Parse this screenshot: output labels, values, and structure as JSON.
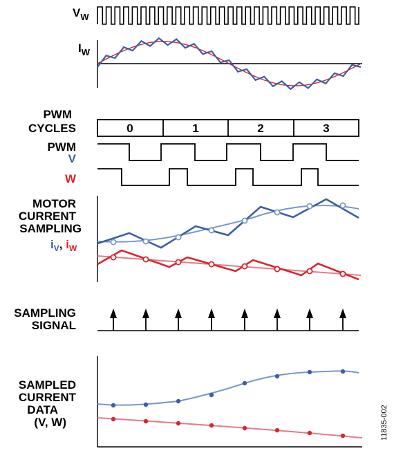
{
  "top": {
    "vw_label": "V",
    "vw_sub": "W",
    "iw_label": "I",
    "iw_sub": "W"
  },
  "pwm_cycles": {
    "label_line1": "PWM",
    "label_line2": "CYCLES",
    "cycles": [
      "0",
      "1",
      "2",
      "3"
    ]
  },
  "pwm": {
    "label": "PWM",
    "v_label": "V",
    "w_label": "W"
  },
  "motor": {
    "line1": "MOTOR",
    "line2": "CURRENT",
    "line3": "SAMPLING",
    "iv": "i",
    "iv_sub": "V",
    "comma": ", ",
    "iw": "i",
    "iw_sub": "W"
  },
  "sampling": {
    "line1": "SAMPLING",
    "line2": "SIGNAL"
  },
  "sampled": {
    "line1": "SAMPLED",
    "line2": "CURRENT",
    "line3": "DATA",
    "line4": "(V, W)"
  },
  "figure_id": "11835-002",
  "colors": {
    "blue": "#3d5fa0",
    "light_blue": "#7a97c9",
    "red": "#d6262d",
    "pink": "#e97a86",
    "black": "#000000"
  }
}
